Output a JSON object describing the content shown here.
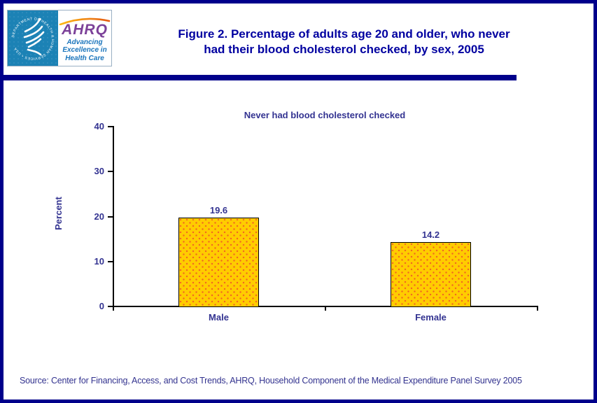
{
  "header": {
    "logo": {
      "seal_text": "DEPARTMENT OF HEALTH & HUMAN SERVICES • USA",
      "acronym": "AHRQ",
      "tagline_lines": [
        "Advancing",
        "Excellence in",
        "Health Care"
      ]
    },
    "title_line1": "Figure 2. Percentage of adults age 20 and older, who never",
    "title_line2": "had their blood cholesterol checked, by sex, 2005"
  },
  "chart_data": {
    "type": "bar",
    "title": "Never had blood cholesterol checked",
    "categories": [
      "Male",
      "Female"
    ],
    "values": [
      19.6,
      14.2
    ],
    "value_labels": [
      "19.6",
      "14.2"
    ],
    "xlabel": "",
    "ylabel": "Percent",
    "ylim": [
      0,
      40
    ],
    "yticks": [
      0,
      10,
      20,
      30,
      40
    ],
    "grid": false,
    "legend": false,
    "bar_fill": "#FFCC00",
    "bar_dot_color": "#F26522",
    "bar_border": "#000000"
  },
  "footer": {
    "source": "Source: Center for Financing, Access, and Cost Trends, AHRQ, Household Component of the Medical Expenditure Panel Survey 2005"
  },
  "colors": {
    "frame_navy": "#00008B",
    "title_navy": "#0000A0",
    "chart_text": "#333391",
    "logo_teal": "#1C82B5",
    "ahrq_purple": "#7C4199",
    "tagline_blue": "#1B75BC",
    "swoosh_orange_start": "#FDB913",
    "swoosh_orange_end": "#E55B13",
    "source_text": "#33338F"
  }
}
